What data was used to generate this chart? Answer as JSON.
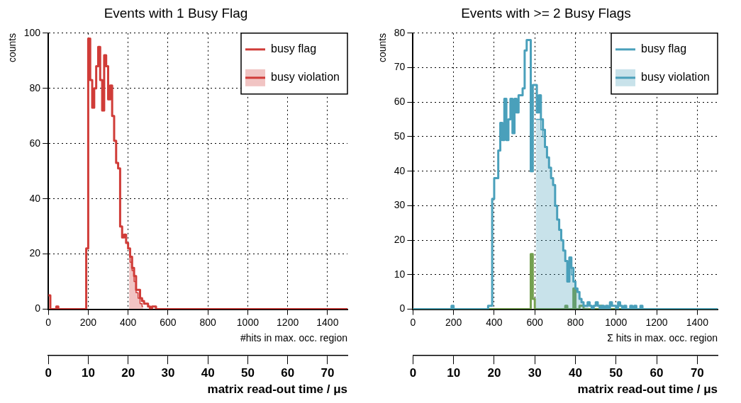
{
  "chart_data": [
    {
      "type": "histogram",
      "title": "Events with 1 Busy Flag",
      "xlabel": "#hits in max. occ. region",
      "ylabel": "counts",
      "x2label": "matrix read-out time / μs",
      "bins": [
        0,
        10,
        40,
        50,
        190,
        200,
        210,
        220,
        230,
        240,
        250,
        260,
        270,
        280,
        290,
        300,
        310,
        320,
        330,
        340,
        350,
        360,
        370,
        380,
        390,
        400,
        410,
        420,
        430,
        440,
        450,
        460,
        470,
        480,
        490,
        500,
        510,
        520,
        530,
        540,
        550,
        1500
      ],
      "series": [
        {
          "name": "busy flag",
          "color": "#d03c38",
          "values": [
            5,
            0,
            1,
            0,
            22,
            98,
            83,
            73,
            80,
            88,
            95,
            83,
            72,
            92,
            88,
            76,
            81,
            70,
            61,
            53,
            51,
            30,
            26,
            27,
            24,
            22,
            19,
            15,
            12,
            7,
            7,
            4,
            3,
            2,
            2,
            1,
            0,
            1,
            1,
            0,
            0
          ]
        },
        {
          "name": "busy violation",
          "type": "area",
          "color": "#d03c38",
          "x": [
            405,
            415,
            425,
            435,
            445,
            455,
            465,
            475
          ],
          "values": [
            20,
            17,
            14,
            10,
            6,
            4,
            2,
            1
          ]
        }
      ],
      "xlim": [
        0,
        1500
      ],
      "xticks": [
        0,
        200,
        400,
        600,
        800,
        1000,
        1200,
        1400
      ],
      "ylim": [
        0,
        100
      ],
      "yticks": [
        0,
        20,
        40,
        60,
        80,
        100
      ],
      "x2lim": [
        0,
        75
      ],
      "x2ticks": [
        0,
        10,
        20,
        30,
        40,
        50,
        60,
        70
      ],
      "grid": true,
      "legend": "top right"
    },
    {
      "type": "histogram",
      "title": "Events with >= 2 Busy Flags",
      "xlabel": "Σ hits in max. occ. region",
      "ylabel": "counts",
      "x2label": "matrix read-out time / μs",
      "bins": [
        0,
        190,
        200,
        370,
        390,
        400,
        410,
        420,
        430,
        440,
        450,
        460,
        470,
        480,
        490,
        500,
        510,
        520,
        530,
        540,
        550,
        560,
        570,
        580,
        590,
        600,
        610,
        620,
        630,
        640,
        650,
        660,
        670,
        680,
        690,
        700,
        710,
        720,
        730,
        740,
        750,
        760,
        770,
        780,
        790,
        800,
        810,
        820,
        830,
        840,
        850,
        860,
        870,
        880,
        890,
        900,
        910,
        920,
        930,
        940,
        950,
        960,
        970,
        980,
        990,
        1000,
        1010,
        1020,
        1030,
        1040,
        1050,
        1060,
        1070,
        1080,
        1090,
        1100,
        1110,
        1120,
        1130,
        1140,
        1500
      ],
      "series": [
        {
          "name": "busy flag",
          "color": "#4aa0bb",
          "values": [
            0,
            1,
            0,
            1,
            32,
            38,
            38,
            46,
            54,
            49,
            61,
            49,
            55,
            61,
            51,
            61,
            57,
            62,
            62,
            64,
            75,
            78,
            78,
            40,
            65,
            65,
            57,
            62,
            55,
            52,
            47,
            44,
            41,
            38,
            36,
            30,
            26,
            23,
            20,
            17,
            14,
            8,
            15,
            12,
            8,
            6,
            5,
            3,
            2,
            1,
            1,
            2,
            1,
            0,
            1,
            2,
            1,
            0,
            1,
            0,
            1,
            0,
            2,
            1,
            1,
            0,
            2,
            1,
            0,
            1,
            0,
            0,
            1,
            0,
            1,
            0,
            0,
            1,
            0,
            0
          ]
        },
        {
          "name": "busy violation",
          "type": "area",
          "color": "#4aa0bb",
          "x": [
            605,
            615,
            625,
            635,
            645,
            655,
            665,
            675,
            685,
            695,
            705,
            715,
            725,
            735,
            745,
            755,
            765,
            775,
            785,
            795,
            805,
            815,
            825,
            835,
            845,
            855,
            865
          ],
          "values": [
            55,
            55,
            55,
            52,
            50,
            47,
            44,
            41,
            38,
            36,
            30,
            26,
            23,
            20,
            17,
            14,
            8,
            12,
            10,
            8,
            6,
            5,
            3,
            2,
            1,
            1,
            1
          ]
        },
        {
          "color": "#74a050",
          "values": [
            0,
            0,
            0,
            0,
            0,
            0,
            0,
            0,
            0,
            0,
            0,
            0,
            0,
            0,
            0,
            0,
            0,
            0,
            0,
            0,
            0,
            0,
            0,
            16,
            3,
            0,
            0,
            0,
            0,
            0,
            0,
            0,
            0,
            0,
            0,
            0,
            0,
            0,
            0,
            0,
            1,
            0,
            0,
            0,
            6,
            0,
            0,
            1,
            1,
            0,
            0,
            0,
            0,
            0,
            0,
            0,
            0,
            1,
            0,
            0,
            0,
            0,
            0,
            0,
            0,
            0,
            0,
            0,
            0,
            0,
            0,
            0,
            0,
            0,
            0,
            0,
            0,
            0,
            0,
            0
          ]
        }
      ],
      "xlim": [
        0,
        1500
      ],
      "xticks": [
        0,
        200,
        400,
        600,
        800,
        1000,
        1200,
        1400
      ],
      "ylim": [
        0,
        80
      ],
      "yticks": [
        0,
        10,
        20,
        30,
        40,
        50,
        60,
        70,
        80
      ],
      "x2lim": [
        0,
        75
      ],
      "x2ticks": [
        0,
        10,
        20,
        30,
        40,
        50,
        60,
        70
      ],
      "grid": true,
      "legend": "top right"
    }
  ]
}
